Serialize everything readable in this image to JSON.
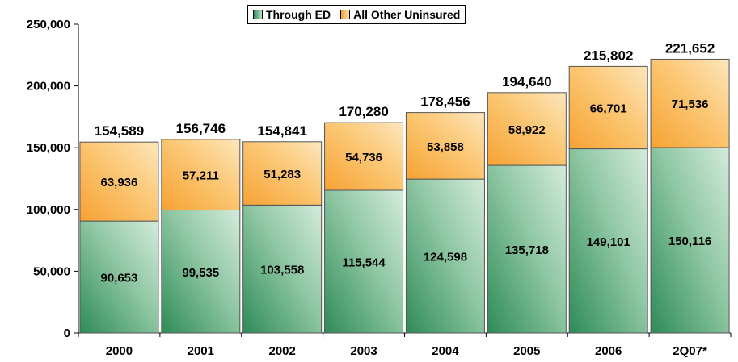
{
  "chart_data": {
    "type": "bar",
    "stacked": true,
    "categories": [
      "2000",
      "2001",
      "2002",
      "2003",
      "2004",
      "2005",
      "2006",
      "2Q07*"
    ],
    "series": [
      {
        "name": "Through ED",
        "values": [
          90653,
          99535,
          103558,
          115544,
          124598,
          135718,
          149101,
          150116
        ],
        "color": "#2e8b57"
      },
      {
        "name": "All Other Uninsured",
        "values": [
          63936,
          57211,
          51283,
          54736,
          53858,
          58922,
          66701,
          71536
        ],
        "color": "#f7a233"
      }
    ],
    "totals": [
      154589,
      156746,
      154841,
      170280,
      178456,
      194640,
      215802,
      221652
    ],
    "labels": {
      "through_ed": [
        "90,653",
        "99,535",
        "103,558",
        "115,544",
        "124,598",
        "135,718",
        "149,101",
        "150,116"
      ],
      "all_other": [
        "63,936",
        "57,211",
        "51,283",
        "54,736",
        "53,858",
        "58,922",
        "66,701",
        "71,536"
      ],
      "totals": [
        "154,589",
        "156,746",
        "154,841",
        "170,280",
        "178,456",
        "194,640",
        "215,802",
        "221,652"
      ]
    },
    "y_ticks": [
      0,
      50000,
      100000,
      150000,
      200000,
      250000
    ],
    "y_tick_labels": [
      "0",
      "50,000",
      "100,000",
      "150,000",
      "200,000",
      "250,000"
    ],
    "ylim": [
      0,
      250000
    ],
    "grid": false,
    "legend_position": "top-center",
    "title": "",
    "xlabel": "",
    "ylabel": ""
  }
}
